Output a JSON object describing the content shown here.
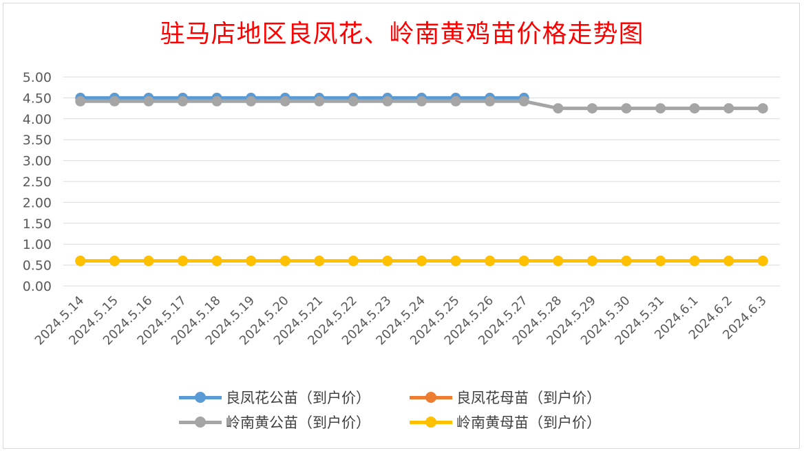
{
  "chart_data": {
    "type": "line",
    "title": "驻马店地区良凤花、岭南黄鸡苗价格走势图",
    "categories": [
      "2024.5.14",
      "2024.5.15",
      "2024.5.16",
      "2024.5.17",
      "2024.5.18",
      "2024.5.19",
      "2024.5.20",
      "2024.5.21",
      "2024.5.22",
      "2024.5.23",
      "2024.5.24",
      "2024.5.25",
      "2024.5.26",
      "2024.5.27",
      "2024.5.28",
      "2024.5.29",
      "2024.5.30",
      "2024.5.31",
      "2024.6.1",
      "2024.6.2",
      "2024.6.3"
    ],
    "ylim": [
      0,
      5
    ],
    "yticks": [
      "0.00",
      "0.50",
      "1.00",
      "1.50",
      "2.00",
      "2.50",
      "3.00",
      "3.50",
      "4.00",
      "4.50",
      "5.00"
    ],
    "grid": true,
    "legend_position": "bottom",
    "series": [
      {
        "name": "良凤花公苗（到户价）",
        "color": "#5b9bd5",
        "values": [
          4.5,
          4.5,
          4.5,
          4.5,
          4.5,
          4.5,
          4.5,
          4.5,
          4.5,
          4.5,
          4.5,
          4.5,
          4.5,
          4.5,
          null,
          null,
          null,
          null,
          null,
          null,
          null
        ]
      },
      {
        "name": "良凤花母苗（到户价）",
        "color": "#ed7d31",
        "values": [
          0.6,
          0.6,
          0.6,
          0.6,
          0.6,
          0.6,
          0.6,
          0.6,
          0.6,
          0.6,
          0.6,
          0.6,
          0.6,
          0.6,
          0.6,
          0.6,
          0.6,
          0.6,
          0.6,
          0.6,
          0.6
        ]
      },
      {
        "name": "岭南黄公苗（到户价）",
        "color": "#a5a5a5",
        "values": [
          4.42,
          4.42,
          4.42,
          4.42,
          4.42,
          4.42,
          4.42,
          4.42,
          4.42,
          4.42,
          4.42,
          4.42,
          4.42,
          4.42,
          4.25,
          4.25,
          4.25,
          4.25,
          4.25,
          4.25,
          4.25
        ]
      },
      {
        "name": "岭南黄母苗（到户价）",
        "color": "#ffc000",
        "values": [
          0.6,
          0.6,
          0.6,
          0.6,
          0.6,
          0.6,
          0.6,
          0.6,
          0.6,
          0.6,
          0.6,
          0.6,
          0.6,
          0.6,
          0.6,
          0.6,
          0.6,
          0.6,
          0.6,
          0.6,
          0.6
        ]
      }
    ]
  }
}
